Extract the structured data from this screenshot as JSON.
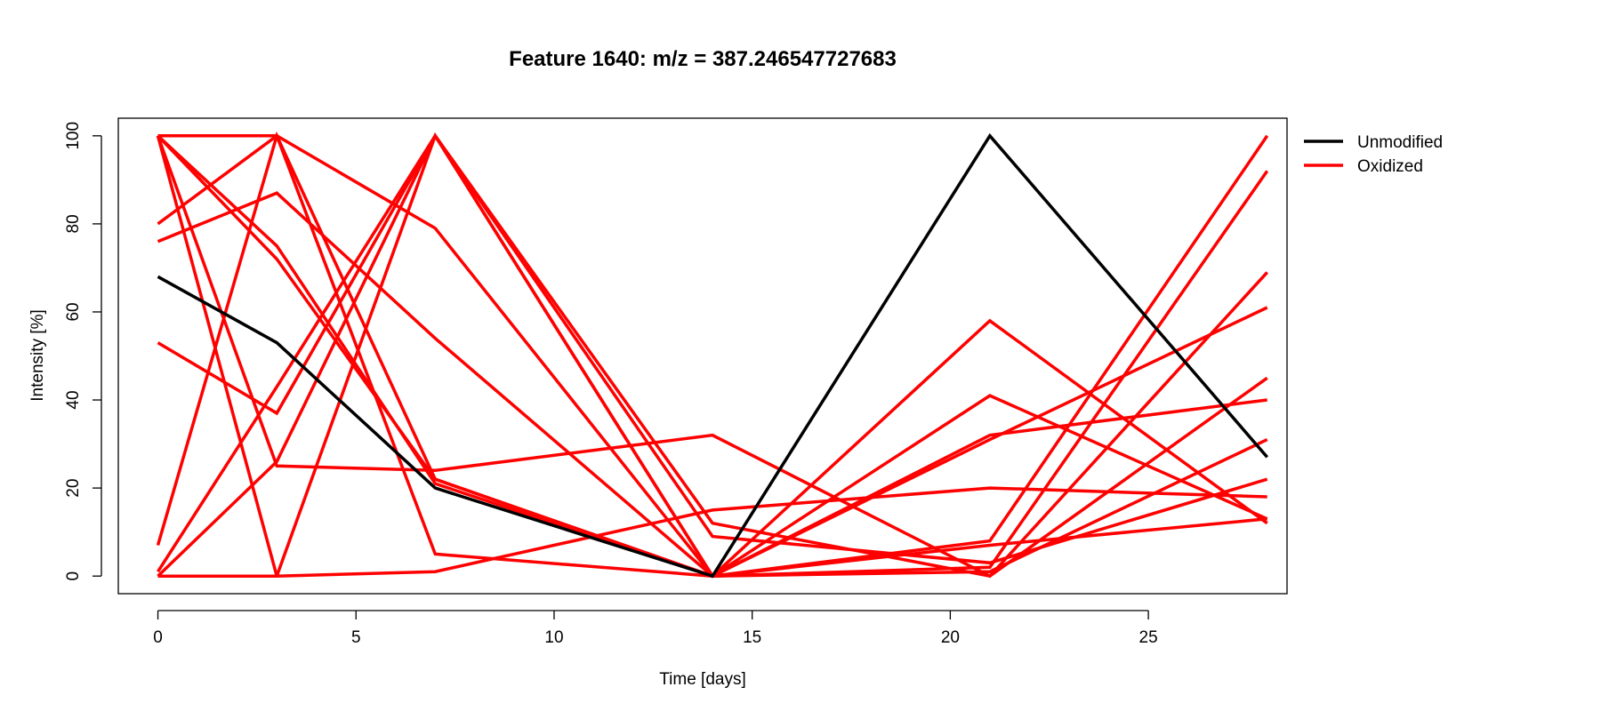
{
  "chart_data": {
    "type": "line",
    "title": "Feature 1640: m/z = 387.246547727683",
    "xlabel": "Time [days]",
    "ylabel": "Intensity [%]",
    "x": [
      0,
      3,
      7,
      14,
      21,
      28
    ],
    "xlim": [
      -1,
      28.5
    ],
    "ylim": [
      -4,
      104
    ],
    "xticks": [
      0,
      5,
      10,
      15,
      20,
      25
    ],
    "yticks": [
      0,
      20,
      40,
      60,
      80,
      100
    ],
    "grid": false,
    "legend_position": "top-right-outside",
    "legend": [
      {
        "label": "Unmodified",
        "color": "#000000"
      },
      {
        "label": "Oxidized",
        "color": "#ff0000"
      }
    ],
    "series": [
      {
        "group": "Unmodified",
        "color": "#000000",
        "values": [
          68,
          53,
          20,
          0,
          100,
          27
        ]
      },
      {
        "group": "Oxidized",
        "color": "#ff0000",
        "values": [
          100,
          75,
          21,
          0,
          8,
          100
        ]
      },
      {
        "group": "Oxidized",
        "color": "#ff0000",
        "values": [
          100,
          72,
          22,
          0,
          31,
          61
        ]
      },
      {
        "group": "Oxidized",
        "color": "#ff0000",
        "values": [
          100,
          25,
          24,
          32,
          0,
          69
        ]
      },
      {
        "group": "Oxidized",
        "color": "#ff0000",
        "values": [
          100,
          0,
          1,
          15,
          20,
          18
        ]
      },
      {
        "group": "Oxidized",
        "color": "#ff0000",
        "values": [
          80,
          100,
          5,
          0,
          2,
          92
        ]
      },
      {
        "group": "Oxidized",
        "color": "#ff0000",
        "values": [
          76,
          87,
          54,
          0,
          58,
          12
        ]
      },
      {
        "group": "Oxidized",
        "color": "#ff0000",
        "values": [
          53,
          37,
          100,
          9,
          3,
          22
        ]
      },
      {
        "group": "Oxidized",
        "color": "#ff0000",
        "values": [
          7,
          100,
          22,
          0,
          41,
          13
        ]
      },
      {
        "group": "Oxidized",
        "color": "#ff0000",
        "values": [
          1,
          43,
          100,
          12,
          0,
          45
        ]
      },
      {
        "group": "Oxidized",
        "color": "#ff0000",
        "values": [
          0,
          26,
          100,
          0,
          32,
          40
        ]
      },
      {
        "group": "Oxidized",
        "color": "#ff0000",
        "values": [
          0,
          0,
          100,
          0,
          1,
          31
        ]
      },
      {
        "group": "Oxidized",
        "color": "#ff0000",
        "values": [
          100,
          100,
          79,
          0,
          7,
          13
        ]
      }
    ]
  }
}
